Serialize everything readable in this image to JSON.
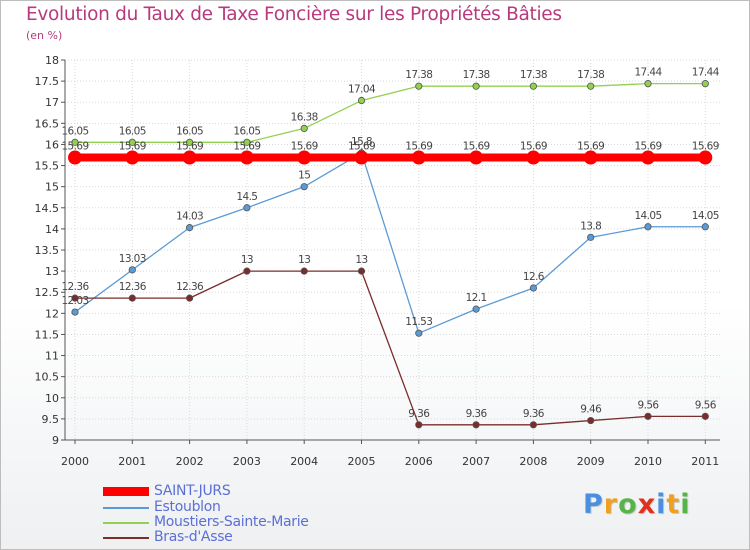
{
  "chart_data": {
    "type": "line",
    "title": "Evolution du Taux de Taxe Foncière sur les Propriétés Bâties",
    "ylabel": "(en %)",
    "xlabel": "",
    "categories": [
      "2000",
      "2001",
      "2002",
      "2003",
      "2004",
      "2005",
      "2006",
      "2007",
      "2008",
      "2009",
      "2010",
      "2011"
    ],
    "ylim": [
      9,
      18
    ],
    "yticks": [
      "9",
      "9.5",
      "10",
      "10.5",
      "11",
      "11.5",
      "12",
      "12.5",
      "13",
      "13.5",
      "14",
      "14.5",
      "15",
      "15.5",
      "16",
      "16.5",
      "17",
      "17.5",
      "18"
    ],
    "grid": true,
    "legend_position": "bottom-left",
    "series": [
      {
        "name": "SAINT-JURS",
        "color": "#ff0000",
        "values": [
          15.69,
          15.69,
          15.69,
          15.69,
          15.69,
          15.69,
          15.69,
          15.69,
          15.69,
          15.69,
          15.69,
          15.69
        ],
        "labels": [
          "15.69",
          "15.69",
          "15.69",
          "15.69",
          "15.69",
          "15.69",
          "15.69",
          "15.69",
          "15.69",
          "15.69",
          "15.69",
          "15.69"
        ]
      },
      {
        "name": "Estoublon",
        "color": "#5b9bd5",
        "values": [
          12.03,
          13.03,
          14.03,
          14.5,
          15,
          15.8,
          11.53,
          12.1,
          12.6,
          13.8,
          14.05,
          14.05
        ],
        "labels": [
          "12.03",
          "13.03",
          "14.03",
          "14.5",
          "15",
          "15.8",
          "11.53",
          "12.1",
          "12.6",
          "13.8",
          "14.05",
          "14.05"
        ]
      },
      {
        "name": "Moustiers-Sainte-Marie",
        "color": "#92d050",
        "values": [
          16.05,
          16.05,
          16.05,
          16.05,
          16.38,
          17.04,
          17.38,
          17.38,
          17.38,
          17.38,
          17.44,
          17.44
        ],
        "labels": [
          "16.05",
          "16.05",
          "16.05",
          "16.05",
          "16.38",
          "17.04",
          "17.38",
          "17.38",
          "17.38",
          "17.38",
          "17.44",
          "17.44"
        ]
      },
      {
        "name": "Bras-d'Asse",
        "color": "#7b2c2c",
        "values": [
          12.36,
          12.36,
          12.36,
          13,
          13,
          13,
          9.36,
          9.36,
          9.36,
          9.46,
          9.56,
          9.56
        ],
        "labels": [
          "12.36",
          "12.36",
          "12.36",
          "13",
          "13",
          "13",
          "9.36",
          "9.36",
          "9.36",
          "9.46",
          "9.56",
          "9.56"
        ]
      }
    ]
  },
  "logo": {
    "letters": [
      "P",
      "r",
      "o",
      "x",
      "i",
      "t",
      "i"
    ],
    "colors": [
      "#4a8fe0",
      "#f0a020",
      "#5ab34a",
      "#e0301e",
      "#4a8fe0",
      "#f0a020",
      "#5ab34a"
    ]
  }
}
